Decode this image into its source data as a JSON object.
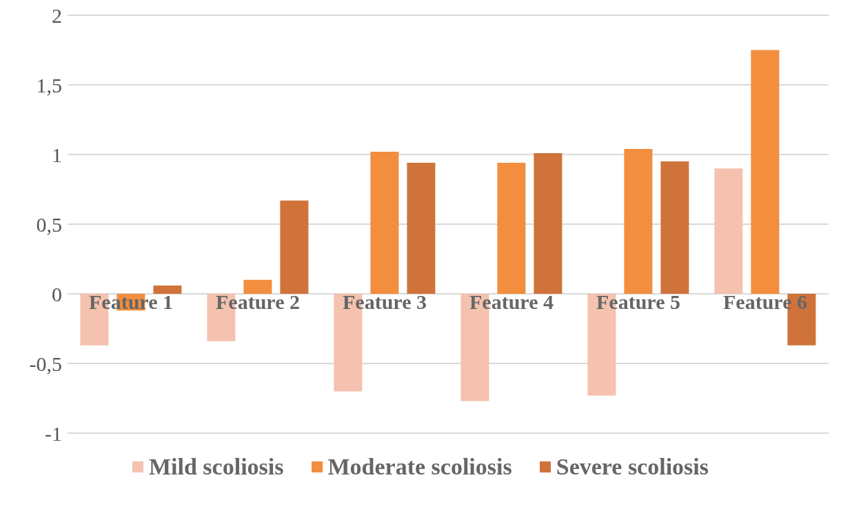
{
  "chart_data": {
    "type": "bar",
    "categories": [
      "Feature 1",
      "Feature 2",
      "Feature 3",
      "Feature 4",
      "Feature 5",
      "Feature 6"
    ],
    "series": [
      {
        "name": "Mild scoliosis",
        "color": "#f4c2ae",
        "values": [
          -0.37,
          -0.34,
          -0.7,
          -0.77,
          -0.73,
          0.9
        ]
      },
      {
        "name": "Moderate scoliosis",
        "color": "#f28e3e",
        "values": [
          -0.12,
          0.1,
          1.02,
          0.94,
          1.04,
          1.75
        ]
      },
      {
        "name": "Severe scoliosis",
        "color": "#d0733a",
        "values": [
          0.06,
          0.67,
          0.94,
          1.01,
          0.95,
          -0.37
        ]
      }
    ],
    "ylim": [
      -1,
      2
    ],
    "yticks": [
      {
        "value": -1,
        "label": "-1"
      },
      {
        "value": -0.5,
        "label": "-0,5"
      },
      {
        "value": 0,
        "label": "0"
      },
      {
        "value": 0.5,
        "label": "0,5"
      },
      {
        "value": 1,
        "label": "1"
      },
      {
        "value": 1.5,
        "label": "1,5"
      },
      {
        "value": 2,
        "label": "2"
      }
    ],
    "grid": "y",
    "legend": "bottom"
  }
}
